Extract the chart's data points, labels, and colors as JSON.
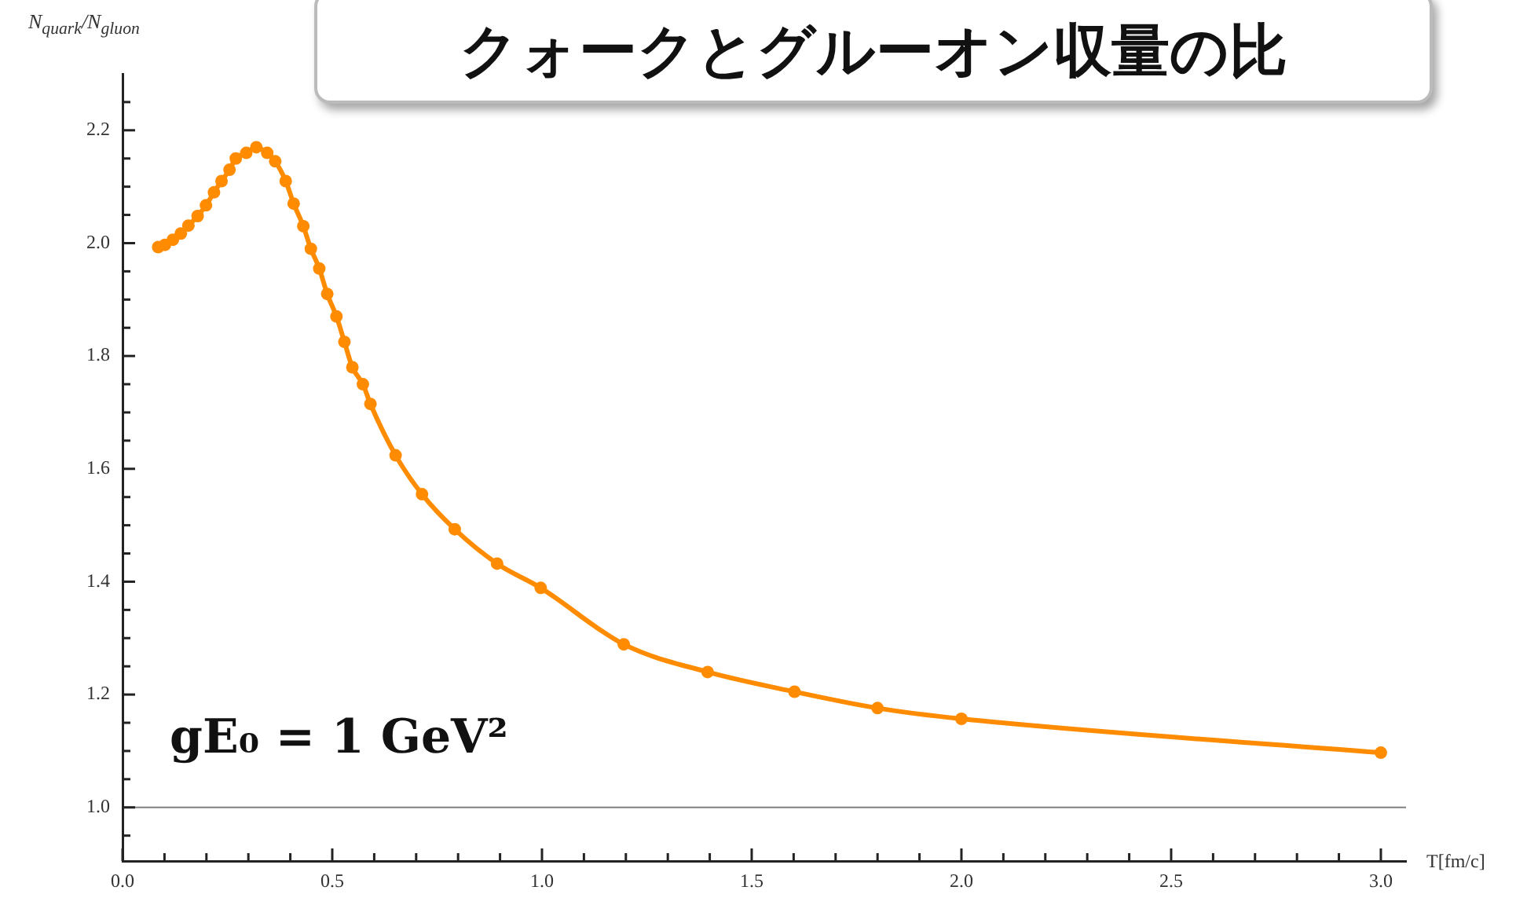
{
  "chart_data": {
    "type": "line",
    "title": "クォークとグルーオン収量の比",
    "xlabel": "T[fm/c]",
    "ylabel": "N$_{quark}$/N$_{gluon}$",
    "annotations": [
      "gE₀ = 1 GeV²"
    ],
    "x": [
      0.085,
      0.101,
      0.12,
      0.139,
      0.157,
      0.179,
      0.199,
      0.218,
      0.236,
      0.255,
      0.27,
      0.295,
      0.319,
      0.345,
      0.364,
      0.389,
      0.408,
      0.431,
      0.449,
      0.469,
      0.488,
      0.51,
      0.529,
      0.548,
      0.573,
      0.591,
      0.651,
      0.714,
      0.792,
      0.893,
      0.997,
      1.195,
      1.395,
      1.602,
      1.8,
      2.0,
      3.0
    ],
    "series": [
      {
        "color": "#ff8c00",
        "values": [
          1.993,
          1.997,
          2.006,
          2.017,
          2.031,
          2.048,
          2.067,
          2.09,
          2.11,
          2.13,
          2.15,
          2.16,
          2.17,
          2.16,
          2.145,
          2.11,
          2.07,
          2.03,
          1.99,
          1.955,
          1.91,
          1.87,
          1.825,
          1.78,
          1.75,
          1.715,
          1.624,
          1.555,
          1.493,
          1.432,
          1.389,
          1.289,
          1.24,
          1.205,
          1.176,
          1.157,
          1.097
        ]
      }
    ],
    "xlim": [
      0,
      3.06
    ],
    "ylim": [
      0.905,
      2.3
    ],
    "xticks": [
      {
        "value": 0,
        "label": "0.0"
      },
      {
        "value": 0.1,
        "label": null
      },
      {
        "value": 0.2,
        "label": null
      },
      {
        "value": 0.3,
        "label": null
      },
      {
        "value": 0.4,
        "label": null
      },
      0.5,
      {
        "value": 0.6,
        "label": null
      },
      {
        "value": 0.7,
        "label": null
      },
      {
        "value": 0.8,
        "label": null
      },
      {
        "value": 0.9,
        "label": null
      },
      {
        "value": 1,
        "label": "1.0"
      },
      {
        "value": 1.1,
        "label": null
      },
      {
        "value": 1.2,
        "label": null
      },
      {
        "value": 1.3,
        "label": null
      },
      {
        "value": 1.4,
        "label": null
      },
      1.5,
      {
        "value": 1.6,
        "label": null
      },
      {
        "value": 1.7,
        "label": null
      },
      {
        "value": 1.8,
        "label": null
      },
      {
        "value": 1.9,
        "label": null
      },
      {
        "value": 2,
        "label": "2.0"
      },
      {
        "value": 2.1,
        "label": null
      },
      {
        "value": 2.2,
        "label": null
      },
      {
        "value": 2.3,
        "label": null
      },
      {
        "value": 2.4,
        "label": null
      },
      2.5,
      {
        "value": 2.6,
        "label": null
      },
      {
        "value": 2.7,
        "label": null
      },
      {
        "value": 2.8,
        "label": null
      },
      {
        "value": 2.9,
        "label": null
      },
      {
        "value": 3,
        "label": "3.0"
      }
    ],
    "yticks": [
      {
        "value": 0.95,
        "label": null
      },
      {
        "value": 1,
        "label": "1.0"
      },
      {
        "value": 1.05,
        "label": null
      },
      {
        "value": 1.1,
        "label": null
      },
      {
        "value": 1.15,
        "label": null
      },
      1.2,
      {
        "value": 1.25,
        "label": null
      },
      {
        "value": 1.3,
        "label": null
      },
      {
        "value": 1.35,
        "label": null
      },
      1.4,
      {
        "value": 1.45,
        "label": null
      },
      {
        "value": 1.5,
        "label": null
      },
      {
        "value": 1.55,
        "label": null
      },
      1.6,
      {
        "value": 1.65,
        "label": null
      },
      {
        "value": 1.7,
        "label": null
      },
      {
        "value": 1.75,
        "label": null
      },
      1.8,
      {
        "value": 1.85,
        "label": null
      },
      {
        "value": 1.9,
        "label": null
      },
      {
        "value": 1.95,
        "label": null
      },
      {
        "value": 2,
        "label": "2.0"
      },
      {
        "value": 2.05,
        "label": null
      },
      {
        "value": 2.1,
        "label": null
      },
      {
        "value": 2.15,
        "label": null
      },
      2.2,
      {
        "value": 2.25,
        "label": null
      }
    ],
    "ref_lines": [
      {
        "axis": "y",
        "value": 1.0,
        "color": "#808080"
      }
    ],
    "grid": false,
    "legend": false,
    "marker": "circle",
    "line_style": "solid"
  }
}
